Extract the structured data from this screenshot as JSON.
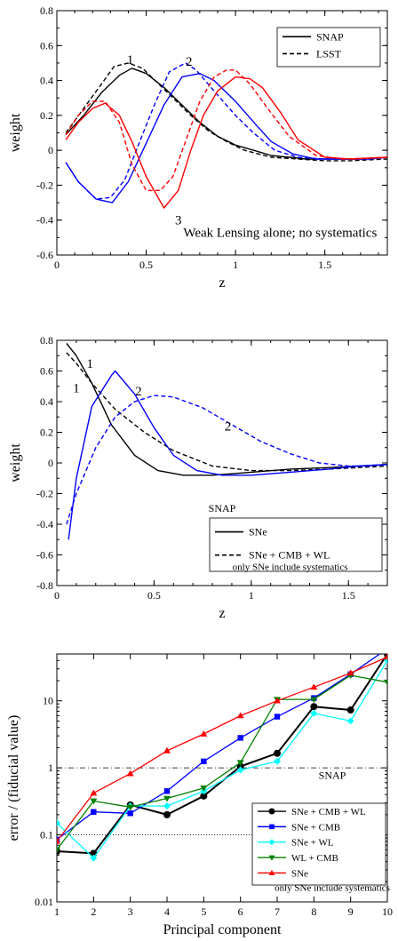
{
  "chart_data": [
    {
      "type": "line",
      "xlabel": "z",
      "ylabel": "weight",
      "xlim": [
        0,
        1.85
      ],
      "ylim": [
        -0.6,
        0.8
      ],
      "xticks": [
        0,
        0.5,
        1,
        1.5
      ],
      "xtick_labels": [
        "0",
        "0.5",
        "1",
        "1.5"
      ],
      "yticks": [
        -0.6,
        -0.4,
        -0.2,
        0,
        0.2,
        0.4,
        0.6,
        0.8
      ],
      "ytick_labels": [
        "-0.6",
        "-0.4",
        "-0.2",
        "0",
        "0.2",
        "0.4",
        "0.6",
        "0.8"
      ],
      "legend": {
        "position": "top-right",
        "entries": [
          "SNAP",
          "LSST"
        ]
      },
      "annotations": [
        {
          "text": "1",
          "x": 0.41,
          "y": 0.52
        },
        {
          "text": "2",
          "x": 0.74,
          "y": 0.51
        },
        {
          "text": "3",
          "x": 0.68,
          "y": -0.4
        },
        {
          "text": "Weak Lensing alone; no systematics",
          "x": 1.25,
          "y": -0.47
        }
      ],
      "series": [
        {
          "name": "SNAP",
          "color": "#000000",
          "dash": false,
          "x": [
            0.05,
            0.15,
            0.25,
            0.35,
            0.42,
            0.5,
            0.6,
            0.7,
            0.8,
            0.9,
            1.0,
            1.1,
            1.2,
            1.3,
            1.4,
            1.5,
            1.6,
            1.7,
            1.85
          ],
          "y": [
            0.09,
            0.2,
            0.33,
            0.43,
            0.47,
            0.44,
            0.36,
            0.26,
            0.16,
            0.08,
            0.03,
            0.0,
            -0.03,
            -0.04,
            -0.05,
            -0.05,
            -0.05,
            -0.05,
            -0.04
          ]
        },
        {
          "name": "LSST",
          "color": "#000000",
          "dash": true,
          "x": [
            0.05,
            0.15,
            0.25,
            0.32,
            0.4,
            0.48,
            0.55,
            0.65,
            0.75,
            0.85,
            0.95,
            1.05,
            1.2,
            1.35,
            1.5,
            1.65,
            1.85
          ],
          "y": [
            0.1,
            0.24,
            0.38,
            0.48,
            0.5,
            0.47,
            0.4,
            0.3,
            0.2,
            0.11,
            0.05,
            0.0,
            -0.04,
            -0.05,
            -0.06,
            -0.06,
            -0.05
          ]
        },
        {
          "color": "#0000ff",
          "dash": false,
          "x": [
            0.05,
            0.12,
            0.22,
            0.31,
            0.4,
            0.5,
            0.6,
            0.7,
            0.8,
            0.88,
            1.0,
            1.12,
            1.2,
            1.32,
            1.45,
            1.6,
            1.75,
            1.85
          ],
          "y": [
            -0.07,
            -0.18,
            -0.28,
            -0.3,
            -0.18,
            0.04,
            0.26,
            0.42,
            0.44,
            0.4,
            0.28,
            0.14,
            0.05,
            -0.02,
            -0.05,
            -0.05,
            -0.05,
            -0.04
          ]
        },
        {
          "color": "#0000ff",
          "dash": true,
          "x": [
            0.05,
            0.12,
            0.22,
            0.3,
            0.38,
            0.46,
            0.55,
            0.63,
            0.72,
            0.78,
            0.88,
            1.0,
            1.1,
            1.22,
            1.35,
            1.5,
            1.7,
            1.85
          ],
          "y": [
            -0.07,
            -0.18,
            -0.28,
            -0.27,
            -0.17,
            0.04,
            0.27,
            0.45,
            0.5,
            0.46,
            0.34,
            0.2,
            0.1,
            0.0,
            -0.04,
            -0.05,
            -0.05,
            -0.04
          ]
        },
        {
          "color": "#ff0000",
          "dash": false,
          "x": [
            0.05,
            0.12,
            0.2,
            0.27,
            0.35,
            0.42,
            0.5,
            0.6,
            0.68,
            0.75,
            0.82,
            0.9,
            1.0,
            1.08,
            1.15,
            1.25,
            1.35,
            1.5,
            1.65,
            1.85
          ],
          "y": [
            0.06,
            0.16,
            0.24,
            0.27,
            0.2,
            0.05,
            -0.15,
            -0.33,
            -0.23,
            0.0,
            0.2,
            0.34,
            0.42,
            0.41,
            0.36,
            0.22,
            0.06,
            -0.04,
            -0.05,
            -0.04
          ]
        },
        {
          "color": "#ff0000",
          "dash": true,
          "x": [
            0.05,
            0.12,
            0.2,
            0.27,
            0.35,
            0.42,
            0.5,
            0.58,
            0.65,
            0.72,
            0.8,
            0.88,
            0.95,
            1.0,
            1.08,
            1.18,
            1.3,
            1.45,
            1.6,
            1.85
          ],
          "y": [
            0.09,
            0.2,
            0.28,
            0.28,
            0.16,
            -0.08,
            -0.23,
            -0.23,
            -0.15,
            0.05,
            0.28,
            0.42,
            0.46,
            0.46,
            0.38,
            0.24,
            0.08,
            -0.03,
            -0.05,
            -0.04
          ]
        }
      ]
    },
    {
      "type": "line",
      "xlabel": "z",
      "ylabel": "weight",
      "xlim": [
        0,
        1.7
      ],
      "ylim": [
        -0.8,
        0.8
      ],
      "xticks": [
        0,
        0.5,
        1,
        1.5
      ],
      "xtick_labels": [
        "0",
        "0.5",
        "1",
        "1.5"
      ],
      "yticks": [
        -0.8,
        -0.6,
        -0.4,
        -0.2,
        0,
        0.2,
        0.4,
        0.6,
        0.8
      ],
      "ytick_labels": [
        "-0.8",
        "-0.6",
        "-0.4",
        "-0.2",
        "0",
        "0.2",
        "0.4",
        "0.6",
        "0.8"
      ],
      "legend": {
        "position": "bottom-right",
        "entries": [
          "SNe",
          "SNe + CMB + WL"
        ]
      },
      "annotations": [
        {
          "text": "1",
          "x": 0.17,
          "y": 0.65
        },
        {
          "text": "1",
          "x": 0.1,
          "y": 0.49
        },
        {
          "text": "2",
          "x": 0.42,
          "y": 0.47
        },
        {
          "text": "2",
          "x": 0.88,
          "y": 0.24
        },
        {
          "text": "SNAP",
          "x": 0.85,
          "y": -0.29
        },
        {
          "text": "only SNe include systematics",
          "x": 1.2,
          "y": -0.67
        }
      ],
      "series": [
        {
          "name": "SNe",
          "color": "#000000",
          "dash": false,
          "x": [
            0.05,
            0.1,
            0.18,
            0.28,
            0.4,
            0.52,
            0.65,
            0.8,
            1.0,
            1.2,
            1.4,
            1.55,
            1.7
          ],
          "y": [
            0.78,
            0.7,
            0.52,
            0.25,
            0.05,
            -0.05,
            -0.08,
            -0.08,
            -0.06,
            -0.04,
            -0.03,
            -0.02,
            -0.01
          ]
        },
        {
          "name": "SNe + CMB + WL",
          "color": "#000000",
          "dash": true,
          "x": [
            0.05,
            0.1,
            0.18,
            0.3,
            0.45,
            0.6,
            0.8,
            1.0,
            1.2,
            1.4,
            1.55,
            1.7
          ],
          "y": [
            0.72,
            0.65,
            0.52,
            0.35,
            0.2,
            0.08,
            -0.02,
            -0.05,
            -0.05,
            -0.04,
            -0.03,
            -0.02
          ]
        },
        {
          "color": "#0000ff",
          "dash": false,
          "x": [
            0.06,
            0.1,
            0.18,
            0.28,
            0.3,
            0.4,
            0.5,
            0.6,
            0.72,
            0.85,
            1.0,
            1.2,
            1.4,
            1.55,
            1.7
          ],
          "y": [
            -0.5,
            -0.1,
            0.37,
            0.57,
            0.6,
            0.45,
            0.23,
            0.05,
            -0.05,
            -0.08,
            -0.08,
            -0.06,
            -0.04,
            -0.02,
            -0.01
          ]
        },
        {
          "color": "#0000ff",
          "dash": true,
          "x": [
            0.05,
            0.1,
            0.2,
            0.3,
            0.4,
            0.5,
            0.6,
            0.75,
            0.9,
            1.05,
            1.2,
            1.35,
            1.5,
            1.6,
            1.7
          ],
          "y": [
            -0.4,
            -0.2,
            0.1,
            0.3,
            0.4,
            0.44,
            0.43,
            0.36,
            0.25,
            0.14,
            0.06,
            0.0,
            -0.02,
            -0.02,
            -0.01
          ]
        }
      ]
    },
    {
      "type": "line",
      "xlabel": "Principal component",
      "ylabel": "error / (fiducial value)",
      "yscale": "log",
      "xlim": [
        1,
        10
      ],
      "ylim": [
        0.01,
        50
      ],
      "xticks": [
        1,
        2,
        3,
        4,
        5,
        6,
        7,
        8,
        9,
        10
      ],
      "xtick_labels": [
        "1",
        "2",
        "3",
        "4",
        "5",
        "6",
        "7",
        "8",
        "9",
        "10"
      ],
      "yticks": [
        0.01,
        0.1,
        1,
        10
      ],
      "ytick_labels": [
        "0.01",
        "0.1",
        "1",
        "10"
      ],
      "reference_lines": [
        {
          "y": 1,
          "style": "dash-dot"
        },
        {
          "y": 0.1,
          "style": "dotted"
        }
      ],
      "legend": {
        "position": "bottom-right",
        "entries": [
          "SNe + CMB + WL",
          "SNe + CMB",
          "SNe + WL",
          "WL + CMB",
          "SNe"
        ]
      },
      "annotations": [
        {
          "text": "SNAP",
          "x": 8.5,
          "y": 0.8
        },
        {
          "text": "only SNe include systematics",
          "x": 8.5,
          "y": 0.017
        }
      ],
      "x": [
        1,
        2,
        3,
        4,
        5,
        6,
        7,
        8,
        9,
        10
      ],
      "series": [
        {
          "name": "SNe + CMB + WL",
          "color": "#000000",
          "marker": "circle",
          "values": [
            0.057,
            0.053,
            0.28,
            0.2,
            0.38,
            1.05,
            1.65,
            8.2,
            7.3,
            50
          ]
        },
        {
          "name": "SNe + CMB",
          "color": "#0000ff",
          "marker": "square",
          "values": [
            0.085,
            0.22,
            0.21,
            0.45,
            1.25,
            2.8,
            5.8,
            11,
            25,
            60
          ]
        },
        {
          "name": "SNe + WL",
          "color": "#00ffff",
          "marker": "diamond",
          "values": [
            0.15,
            0.045,
            0.27,
            0.27,
            0.45,
            0.93,
            1.25,
            6.5,
            5,
            40
          ]
        },
        {
          "name": "WL + CMB",
          "color": "#008000",
          "marker": "triangle-down",
          "values": [
            0.06,
            0.32,
            0.26,
            0.35,
            0.5,
            1.2,
            10.5,
            10.5,
            24,
            19
          ]
        },
        {
          "name": "SNe",
          "color": "#ff0000",
          "marker": "triangle-up",
          "values": [
            0.08,
            0.42,
            0.82,
            1.8,
            3.2,
            6,
            10,
            16,
            26,
            45
          ]
        }
      ]
    }
  ]
}
